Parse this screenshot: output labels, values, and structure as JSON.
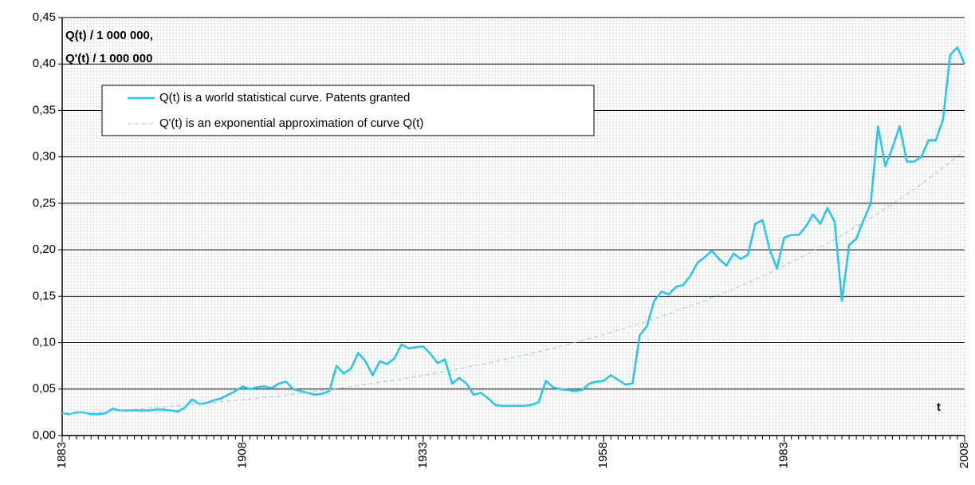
{
  "chart_data": {
    "type": "line",
    "ylabel": [
      "Q(t) / 1 000 000,",
      "Q'(t) / 1 000 000"
    ],
    "xlabel": "t",
    "x": [
      1883,
      1884,
      1885,
      1886,
      1887,
      1888,
      1889,
      1890,
      1891,
      1892,
      1893,
      1894,
      1895,
      1896,
      1897,
      1898,
      1899,
      1900,
      1901,
      1902,
      1903,
      1904,
      1905,
      1906,
      1907,
      1908,
      1909,
      1910,
      1911,
      1912,
      1913,
      1914,
      1915,
      1916,
      1917,
      1918,
      1919,
      1920,
      1921,
      1922,
      1923,
      1924,
      1925,
      1926,
      1927,
      1928,
      1929,
      1930,
      1931,
      1932,
      1933,
      1934,
      1935,
      1936,
      1937,
      1938,
      1939,
      1940,
      1941,
      1942,
      1943,
      1944,
      1945,
      1946,
      1947,
      1948,
      1949,
      1950,
      1951,
      1952,
      1953,
      1954,
      1955,
      1956,
      1957,
      1958,
      1959,
      1960,
      1961,
      1962,
      1963,
      1964,
      1965,
      1966,
      1967,
      1968,
      1969,
      1970,
      1971,
      1972,
      1973,
      1974,
      1975,
      1976,
      1977,
      1978,
      1979,
      1980,
      1981,
      1982,
      1983,
      1984,
      1985,
      1986,
      1987,
      1988,
      1989,
      1990,
      1991,
      1992,
      1993,
      1994,
      1995,
      1996,
      1997,
      1998,
      1999,
      2000,
      2001,
      2002,
      2003,
      2004,
      2005,
      2006,
      2007,
      2008
    ],
    "series": [
      {
        "name": "Q(t) is a world statistical curve. Patents granted",
        "color": "#1ec8f0",
        "style": "solid",
        "values": [
          0.024,
          0.023,
          0.025,
          0.025,
          0.023,
          0.023,
          0.024,
          0.029,
          0.027,
          0.027,
          0.027,
          0.027,
          0.027,
          0.028,
          0.028,
          0.027,
          0.026,
          0.03,
          0.039,
          0.034,
          0.035,
          0.038,
          0.04,
          0.044,
          0.048,
          0.053,
          0.05,
          0.052,
          0.053,
          0.051,
          0.056,
          0.058,
          0.05,
          0.048,
          0.046,
          0.044,
          0.045,
          0.048,
          0.075,
          0.067,
          0.072,
          0.089,
          0.08,
          0.065,
          0.08,
          0.077,
          0.083,
          0.098,
          0.094,
          0.095,
          0.096,
          0.088,
          0.078,
          0.082,
          0.056,
          0.062,
          0.056,
          0.044,
          0.046,
          0.04,
          0.033,
          0.032,
          0.032,
          0.032,
          0.032,
          0.033,
          0.036,
          0.059,
          0.052,
          0.05,
          0.049,
          0.048,
          0.049,
          0.056,
          0.058,
          0.059,
          0.065,
          0.06,
          0.055,
          0.056,
          0.108,
          0.118,
          0.145,
          0.155,
          0.152,
          0.16,
          0.162,
          0.172,
          0.186,
          0.192,
          0.199,
          0.19,
          0.183,
          0.196,
          0.19,
          0.195,
          0.228,
          0.232,
          0.2,
          0.18,
          0.213,
          0.216,
          0.216,
          0.225,
          0.238,
          0.228,
          0.245,
          0.23,
          0.145,
          0.205,
          0.212,
          0.232,
          0.25,
          0.333,
          0.29,
          0.31,
          0.333,
          0.295,
          0.295,
          0.3,
          0.318,
          0.318,
          0.34,
          0.41,
          0.418,
          0.4
        ]
      },
      {
        "name": "Q'(t) is an exponential approximation of curve Q(t)",
        "color": "#8cc8f0",
        "style": "dashed",
        "values": [
          0.023,
          0.0235,
          0.024,
          0.0245,
          0.025,
          0.0255,
          0.026,
          0.0266,
          0.0272,
          0.0277,
          0.0283,
          0.0289,
          0.0295,
          0.0301,
          0.0308,
          0.0314,
          0.0321,
          0.0327,
          0.0334,
          0.0341,
          0.0348,
          0.0356,
          0.0363,
          0.0371,
          0.0378,
          0.0386,
          0.0394,
          0.0403,
          0.0411,
          0.042,
          0.0428,
          0.0437,
          0.0447,
          0.0456,
          0.0465,
          0.0475,
          0.0485,
          0.0495,
          0.0506,
          0.0516,
          0.0527,
          0.0538,
          0.0549,
          0.0561,
          0.0573,
          0.0584,
          0.0597,
          0.0609,
          0.0622,
          0.0635,
          0.0648,
          0.0662,
          0.0675,
          0.0689,
          0.0704,
          0.0719,
          0.0734,
          0.0749,
          0.0765,
          0.0781,
          0.0797,
          0.0814,
          0.0831,
          0.0848,
          0.0866,
          0.0884,
          0.0902,
          0.0921,
          0.094,
          0.096,
          0.0981,
          0.1001,
          0.1022,
          0.1043,
          0.1065,
          0.1088,
          0.1111,
          0.1134,
          0.1158,
          0.1182,
          0.1207,
          0.1232,
          0.1258,
          0.1284,
          0.1311,
          0.1339,
          0.1367,
          0.1395,
          0.1424,
          0.1454,
          0.1485,
          0.1516,
          0.1548,
          0.158,
          0.1613,
          0.1647,
          0.1681,
          0.1716,
          0.1752,
          0.1789,
          0.1827,
          0.1865,
          0.1904,
          0.1944,
          0.1985,
          0.2027,
          0.2069,
          0.2112,
          0.2157,
          0.2202,
          0.2248,
          0.2295,
          0.2343,
          0.2392,
          0.2442,
          0.2494,
          0.2546,
          0.2599,
          0.2654,
          0.2709,
          0.2766,
          0.2824,
          0.2883,
          0.2943,
          0.3005,
          0.307
        ]
      }
    ],
    "xlim": [
      1883,
      2008
    ],
    "xticks": [
      1883,
      1908,
      1933,
      1958,
      1983,
      2008
    ],
    "ylim": [
      0,
      0.45
    ],
    "yticks": [
      {
        "value": 0,
        "label": "0,00"
      },
      {
        "value": 0.05,
        "label": "0,05"
      },
      {
        "value": 0.1,
        "label": "0,10"
      },
      {
        "value": 0.15,
        "label": "0,15"
      },
      {
        "value": 0.2,
        "label": "0,20"
      },
      {
        "value": 0.25,
        "label": "0,25"
      },
      {
        "value": 0.3,
        "label": "0,30"
      },
      {
        "value": 0.35,
        "label": "0,35"
      },
      {
        "value": 0.4,
        "label": "0,40"
      },
      {
        "value": 0.45,
        "label": "0,45"
      }
    ],
    "grid": true,
    "legend": "upper left"
  }
}
